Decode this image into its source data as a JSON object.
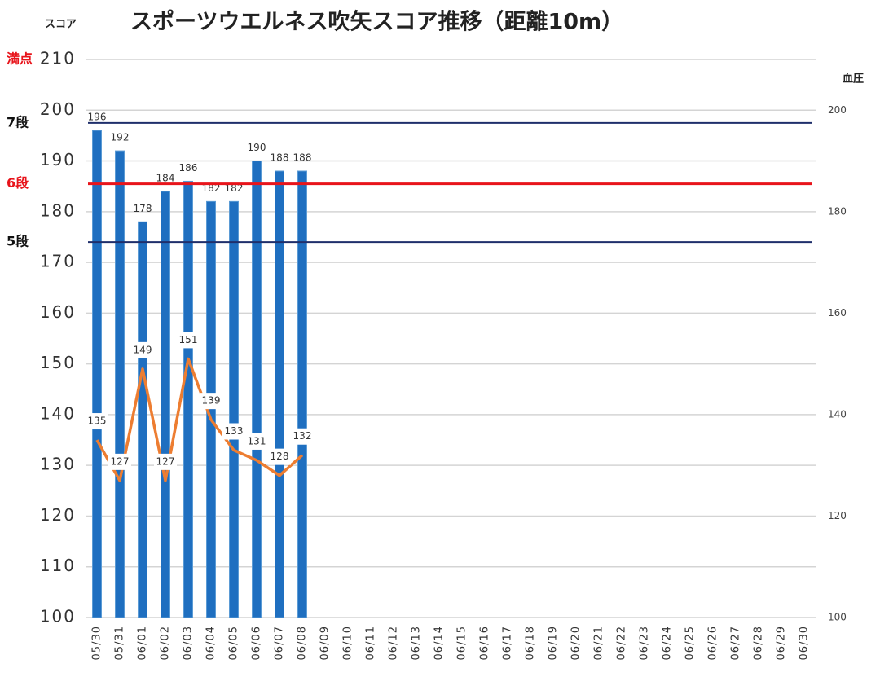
{
  "chart_data": {
    "type": "bar",
    "title": "スポーツウエルネス吹矢スコア推移（距離10m）",
    "y_label": "スコア",
    "y2_label": "血圧",
    "categories": [
      "05/30",
      "05/31",
      "06/01",
      "06/02",
      "06/03",
      "06/04",
      "06/05",
      "06/06",
      "06/07",
      "06/08",
      "06/09",
      "06/10",
      "06/11",
      "06/12",
      "06/13",
      "06/14",
      "06/15",
      "06/16",
      "06/17",
      "06/18",
      "06/19",
      "06/20",
      "06/21",
      "06/22",
      "06/23",
      "06/24",
      "06/25",
      "06/26",
      "06/27",
      "06/28",
      "06/29",
      "06/30"
    ],
    "series": [
      {
        "type": "bar",
        "color": "#1f6fc0",
        "values": [
          196,
          192,
          178,
          184,
          186,
          182,
          182,
          190,
          188,
          188,
          null,
          null,
          null,
          null,
          null,
          null,
          null,
          null,
          null,
          null,
          null,
          null,
          null,
          null,
          null,
          null,
          null,
          null,
          null,
          null,
          null,
          null
        ]
      },
      {
        "type": "line",
        "axis": "y2",
        "color": "#ed7d31",
        "values": [
          135,
          127,
          149,
          127,
          151,
          139,
          133,
          131,
          128,
          132,
          null,
          null,
          null,
          null,
          null,
          null,
          null,
          null,
          null,
          null,
          null,
          null,
          null,
          null,
          null,
          null,
          null,
          null,
          null,
          null,
          null,
          null
        ]
      }
    ],
    "ylim": [
      100,
      210
    ],
    "yticks": [
      100,
      110,
      120,
      130,
      140,
      150,
      160,
      170,
      180,
      190,
      200,
      210
    ],
    "y2lim": [
      100,
      210
    ],
    "y2ticks": [
      100,
      120,
      140,
      160,
      180,
      200
    ],
    "grid": true,
    "reference_lines": [
      {
        "label": "満点",
        "value": 210,
        "label_color": "#e8141b"
      },
      {
        "label": "7段",
        "value": 197.5,
        "label_color": "#111111",
        "line_color": "#1f2f6b"
      },
      {
        "label": "6段",
        "value": 185.5,
        "label_color": "#e8141b",
        "line_color": "#e8141b"
      },
      {
        "label": "5段",
        "value": 174,
        "label_color": "#111111",
        "line_color": "#1f2f6b"
      }
    ]
  }
}
